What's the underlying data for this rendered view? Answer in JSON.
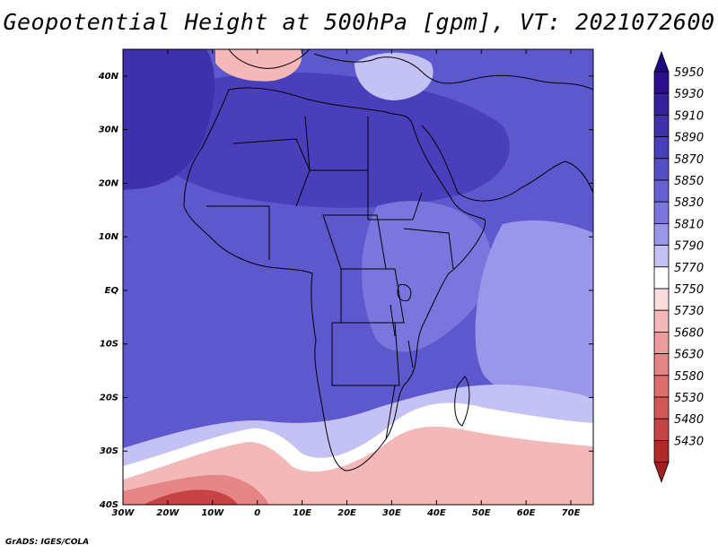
{
  "title": "Geopotential Height at 500hPa [gpm], VT: 2021072600",
  "credit": "GrADS: IGES/COLA",
  "map": {
    "projection": "latlon",
    "lon_range": [
      -30,
      75
    ],
    "lat_range": [
      -40,
      45
    ],
    "lon_ticks": [
      {
        "value": -30,
        "label": "30W"
      },
      {
        "value": -20,
        "label": "20W"
      },
      {
        "value": -10,
        "label": "10W"
      },
      {
        "value": 0,
        "label": "0"
      },
      {
        "value": 10,
        "label": "10E"
      },
      {
        "value": 20,
        "label": "20E"
      },
      {
        "value": 30,
        "label": "30E"
      },
      {
        "value": 40,
        "label": "40E"
      },
      {
        "value": 50,
        "label": "50E"
      },
      {
        "value": 60,
        "label": "60E"
      },
      {
        "value": 70,
        "label": "70E"
      }
    ],
    "lat_ticks": [
      {
        "value": 40,
        "label": "40N"
      },
      {
        "value": 30,
        "label": "30N"
      },
      {
        "value": 20,
        "label": "20N"
      },
      {
        "value": 10,
        "label": "10N"
      },
      {
        "value": 0,
        "label": "EQ"
      },
      {
        "value": -10,
        "label": "10S"
      },
      {
        "value": -20,
        "label": "20S"
      },
      {
        "value": -30,
        "label": "30S"
      },
      {
        "value": -40,
        "label": "40S"
      }
    ]
  },
  "colorbar": {
    "levels": [
      {
        "label": "5950",
        "color": "#2b0f8f"
      },
      {
        "label": "5930",
        "color": "#36219d"
      },
      {
        "label": "5910",
        "color": "#3f30ab"
      },
      {
        "label": "5890",
        "color": "#4a3fba"
      },
      {
        "label": "5870",
        "color": "#554fc6"
      },
      {
        "label": "5850",
        "color": "#6660d2"
      },
      {
        "label": "5830",
        "color": "#7a76de"
      },
      {
        "label": "5810",
        "color": "#9a96ea"
      },
      {
        "label": "5790",
        "color": "#c4c2f4"
      },
      {
        "label": "5770",
        "color": "#ffffff"
      },
      {
        "label": "5750",
        "color": "#fbdcdc"
      },
      {
        "label": "5730",
        "color": "#f4b8b8"
      },
      {
        "label": "5680",
        "color": "#ec9c9c"
      },
      {
        "label": "5630",
        "color": "#e58585"
      },
      {
        "label": "5580",
        "color": "#de6e6e"
      },
      {
        "label": "5530",
        "color": "#d45757"
      },
      {
        "label": "5480",
        "color": "#c74343"
      },
      {
        "label": "5430",
        "color": "#b02828"
      }
    ],
    "top_triangle_color": "#200a80",
    "bottom_triangle_color": "#a01f1f"
  },
  "field": {
    "background_color": "#5e58cf",
    "regions": [
      {
        "name": "sahara-high",
        "color": "#4a3fba"
      },
      {
        "name": "atlantic-high",
        "color": "#3f30ab"
      },
      {
        "name": "east-africa",
        "color": "#7a76de"
      },
      {
        "name": "indian-ocean",
        "color": "#9a96ea"
      },
      {
        "name": "south-ridge",
        "color": "#c4c2f4"
      },
      {
        "name": "south-trough-white",
        "color": "#ffffff"
      },
      {
        "name": "south-trough-light",
        "color": "#f4b8b8"
      },
      {
        "name": "south-trough-mid",
        "color": "#e58585"
      },
      {
        "name": "south-trough-deep",
        "color": "#c74343"
      },
      {
        "name": "iberia-low",
        "color": "#f4b8b8"
      },
      {
        "name": "mediterranean-light",
        "color": "#c4c2f4"
      }
    ]
  }
}
